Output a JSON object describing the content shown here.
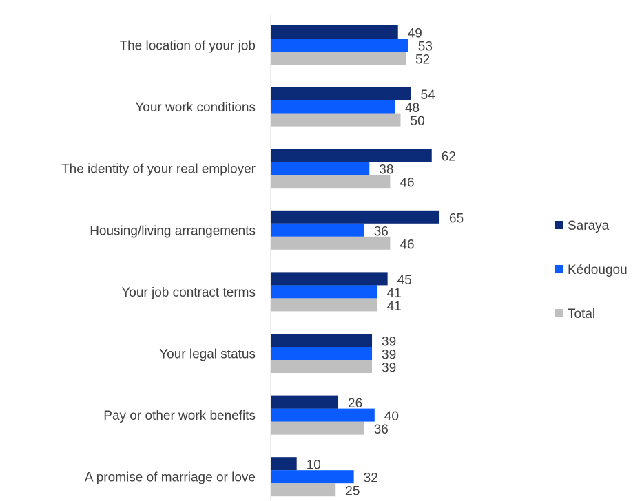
{
  "chart_data": {
    "type": "bar",
    "orientation": "horizontal",
    "categories": [
      "The location of your job",
      "Your work conditions",
      "The identity of your real employer",
      "Housing/living arrangements",
      "Your job contract terms",
      "Your legal status",
      "Pay or other work benefits",
      "A promise of marriage or love"
    ],
    "series": [
      {
        "name": "Saraya",
        "color": "#0b2a78",
        "values": [
          49,
          54,
          62,
          65,
          45,
          39,
          26,
          10
        ]
      },
      {
        "name": "Kédougou",
        "color": "#0a5cff",
        "values": [
          53,
          48,
          38,
          36,
          41,
          39,
          40,
          32
        ]
      },
      {
        "name": "Total",
        "color": "#bfbfbf",
        "values": [
          52,
          50,
          46,
          46,
          41,
          39,
          36,
          25
        ]
      }
    ],
    "xlim": [
      0,
      100
    ],
    "grid": false,
    "legend_position": "right",
    "title": "",
    "xlabel": "",
    "ylabel": ""
  }
}
